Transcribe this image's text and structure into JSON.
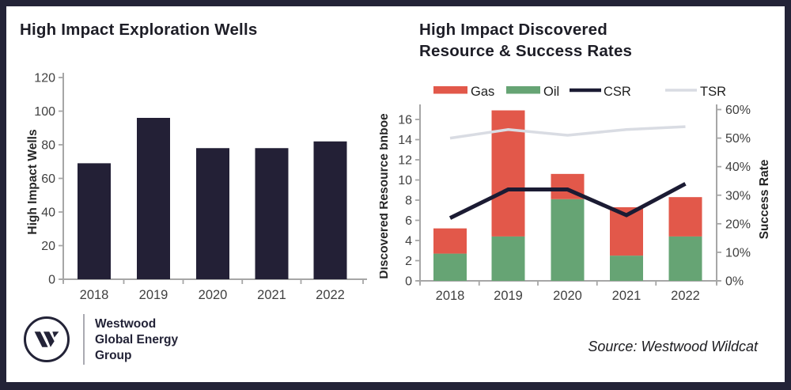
{
  "chart_data": [
    {
      "type": "bar",
      "title": "High Impact Exploration Wells",
      "categories": [
        "2018",
        "2019",
        "2020",
        "2021",
        "2022"
      ],
      "values": [
        69,
        96,
        78,
        78,
        82
      ],
      "xlabel": "",
      "ylabel": "High Impact Wells",
      "ylim": [
        0,
        120
      ],
      "ytick_step": 20,
      "grid": false,
      "bar_color": "#232036"
    },
    {
      "type": "combo-stacked-bar-line",
      "title_lines": [
        "High Impact Discovered",
        "Resource & Success Rates"
      ],
      "categories": [
        "2018",
        "2019",
        "2020",
        "2021",
        "2022"
      ],
      "series": [
        {
          "name": "Gas",
          "kind": "bar",
          "stack": "resource",
          "axis": "left",
          "values": [
            2.5,
            12.5,
            2.5,
            4.8,
            3.9
          ],
          "color": "#e2584a"
        },
        {
          "name": "Oil",
          "kind": "bar",
          "stack": "resource",
          "axis": "left",
          "values": [
            2.7,
            4.4,
            8.1,
            2.5,
            4.4
          ],
          "color": "#66a474"
        },
        {
          "name": "CSR",
          "kind": "line",
          "axis": "right",
          "values": [
            22,
            32,
            32,
            23,
            34
          ],
          "color": "#1b1b33"
        },
        {
          "name": "TSR",
          "kind": "line",
          "axis": "right",
          "values": [
            50,
            53,
            51,
            53,
            54
          ],
          "color": "#d9dce3"
        }
      ],
      "stack_totals": [
        5.2,
        16.9,
        10.6,
        7.3,
        8.3
      ],
      "ylabel_left": "Discovered Resource bnboe",
      "ylabel_right": "Success Rate",
      "ylim_left": [
        0,
        16
      ],
      "ytick_step_left": 2,
      "ylim_right_pct": [
        0,
        60
      ],
      "ytick_step_right_pct": 10,
      "right_tick_suffix": "%",
      "grid": false,
      "legend_position": "top"
    }
  ],
  "footer": {
    "logo_mark": "W",
    "logo_lines": [
      "Westwood",
      "Global Energy",
      "Group"
    ],
    "source": "Source: Westwood  Wildcat"
  },
  "colors": {
    "frame": "#232337",
    "axis": "#a6a6a6",
    "tick_text": "#404040",
    "title_text": "#1d1d26",
    "gas": "#e2584a",
    "oil": "#66a474",
    "csr_line": "#1b1b33",
    "tsr_line": "#d9dce3"
  }
}
